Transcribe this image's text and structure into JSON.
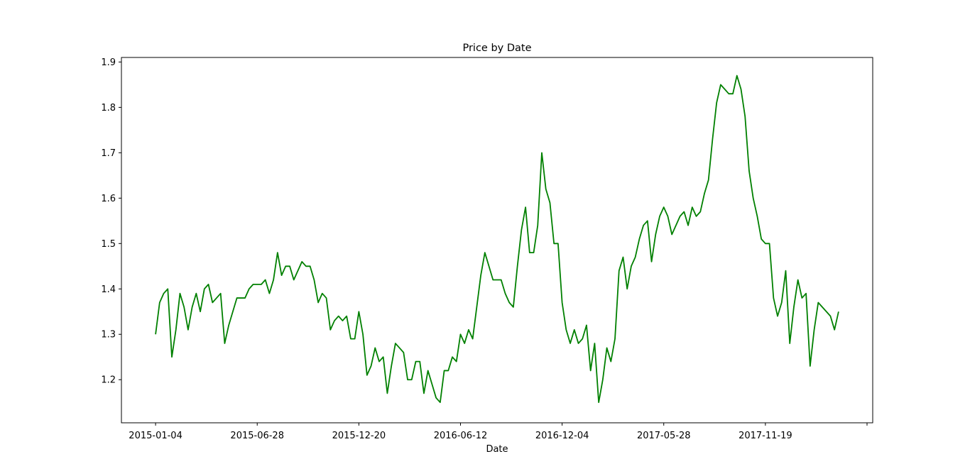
{
  "chart_data": {
    "type": "line",
    "title": "Price by Date",
    "xlabel": "Date",
    "ylabel": "",
    "ylim": [
      1.105,
      1.91
    ],
    "grid": false,
    "legend": "none",
    "line_color": "#008000",
    "x_start": "2015-01-04",
    "x_step_days": 7,
    "x_ticks": [
      "2015-01-04",
      "2015-06-28",
      "2015-12-20",
      "2016-06-12",
      "2016-12-04",
      "2017-05-28",
      "2017-11-19"
    ],
    "y_ticks": [
      1.2,
      1.3,
      1.4,
      1.5,
      1.6,
      1.7,
      1.8,
      1.9
    ],
    "y_tick_labels": [
      "1.2",
      "1.3",
      "1.4",
      "1.5",
      "1.6",
      "1.7",
      "1.8",
      "1.9"
    ],
    "series": [
      {
        "name": "",
        "values": [
          1.3,
          1.37,
          1.39,
          1.4,
          1.25,
          1.31,
          1.39,
          1.36,
          1.31,
          1.36,
          1.39,
          1.35,
          1.4,
          1.41,
          1.37,
          1.38,
          1.39,
          1.28,
          1.32,
          1.35,
          1.38,
          1.38,
          1.38,
          1.4,
          1.41,
          1.41,
          1.41,
          1.42,
          1.39,
          1.42,
          1.48,
          1.43,
          1.45,
          1.45,
          1.42,
          1.44,
          1.46,
          1.45,
          1.45,
          1.42,
          1.37,
          1.39,
          1.38,
          1.31,
          1.33,
          1.34,
          1.33,
          1.34,
          1.29,
          1.29,
          1.35,
          1.3,
          1.21,
          1.23,
          1.27,
          1.24,
          1.25,
          1.17,
          1.23,
          1.28,
          1.27,
          1.26,
          1.2,
          1.2,
          1.24,
          1.24,
          1.17,
          1.22,
          1.19,
          1.16,
          1.15,
          1.22,
          1.22,
          1.25,
          1.24,
          1.3,
          1.28,
          1.31,
          1.29,
          1.36,
          1.43,
          1.48,
          1.45,
          1.42,
          1.42,
          1.42,
          1.39,
          1.37,
          1.36,
          1.45,
          1.53,
          1.58,
          1.48,
          1.48,
          1.54,
          1.7,
          1.62,
          1.59,
          1.5,
          1.5,
          1.37,
          1.31,
          1.28,
          1.31,
          1.28,
          1.29,
          1.32,
          1.22,
          1.28,
          1.15,
          1.2,
          1.27,
          1.24,
          1.29,
          1.44,
          1.47,
          1.4,
          1.45,
          1.47,
          1.51,
          1.54,
          1.55,
          1.46,
          1.52,
          1.56,
          1.58,
          1.56,
          1.52,
          1.54,
          1.56,
          1.57,
          1.54,
          1.58,
          1.56,
          1.57,
          1.61,
          1.64,
          1.73,
          1.81,
          1.85,
          1.84,
          1.83,
          1.83,
          1.87,
          1.84,
          1.78,
          1.66,
          1.6,
          1.56,
          1.51,
          1.5,
          1.5,
          1.38,
          1.34,
          1.37,
          1.44,
          1.28,
          1.36,
          1.42,
          1.38,
          1.39,
          1.23,
          1.31,
          1.37,
          1.36,
          1.35,
          1.34,
          1.31,
          1.35
        ]
      }
    ]
  }
}
